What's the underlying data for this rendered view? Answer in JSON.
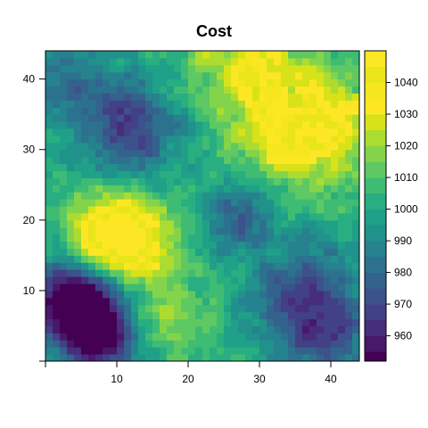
{
  "chart_data": {
    "type": "heatmap",
    "title": "Cost",
    "xlabel": "",
    "ylabel": "",
    "grid_cols": 44,
    "grid_rows": 44,
    "xlim": [
      0,
      44
    ],
    "ylim": [
      0,
      44
    ],
    "x_ticks": [
      10,
      20,
      30,
      40
    ],
    "y_ticks": [
      10,
      20,
      30,
      40
    ],
    "colorbar": {
      "range": [
        952,
        1050
      ],
      "breaks": [
        952,
        955,
        960,
        965,
        970,
        975,
        980,
        985,
        990,
        995,
        1000,
        1005,
        1010,
        1015,
        1020,
        1025,
        1030,
        1035,
        1040,
        1045,
        1050
      ],
      "ticks": [
        960,
        970,
        980,
        990,
        1000,
        1010,
        1020,
        1030,
        1040
      ],
      "colors": [
        "#440154",
        "#48186a",
        "#472d7b",
        "#424086",
        "#3b528b",
        "#33638d",
        "#2c728e",
        "#26828e",
        "#21918c",
        "#1fa088",
        "#28ae80",
        "#3fbc73",
        "#5ec962",
        "#84d44b",
        "#addc30",
        "#d8e219",
        "#fde725",
        "#f5e61e",
        "#e9e51a",
        "#fde725"
      ]
    },
    "field_description": "smooth random field; low (~955-975) at bottom-left, high (~1040) at left-middle near (9,18) and top-right",
    "hotspots": [
      {
        "x": 8.5,
        "y": 18,
        "value": 1044,
        "spread": 4
      },
      {
        "x": 13,
        "y": 17,
        "value": 1030,
        "spread": 4
      },
      {
        "x": 29,
        "y": 42,
        "value": 1034,
        "spread": 5
      },
      {
        "x": 34,
        "y": 32,
        "value": 1028,
        "spread": 6
      },
      {
        "x": 40,
        "y": 34,
        "value": 1026,
        "spread": 5
      },
      {
        "x": 16,
        "y": 6,
        "value": 1020,
        "spread": 5
      },
      {
        "x": 6,
        "y": 7,
        "value": 962,
        "spread": 4
      },
      {
        "x": 8,
        "y": 3,
        "value": 960,
        "spread": 4
      },
      {
        "x": 3,
        "y": 10,
        "value": 970,
        "spread": 4
      },
      {
        "x": 36,
        "y": 9,
        "value": 968,
        "spread": 5
      },
      {
        "x": 40,
        "y": 3,
        "value": 978,
        "spread": 4
      },
      {
        "x": 27,
        "y": 21,
        "value": 978,
        "spread": 4
      },
      {
        "x": 13,
        "y": 32,
        "value": 975,
        "spread": 4
      },
      {
        "x": 10,
        "y": 36,
        "value": 985,
        "spread": 4
      },
      {
        "x": 33,
        "y": 38,
        "value": 995,
        "spread": 4
      },
      {
        "x": 2,
        "y": 40,
        "value": 985,
        "spread": 5
      }
    ],
    "base_value": 1002
  }
}
